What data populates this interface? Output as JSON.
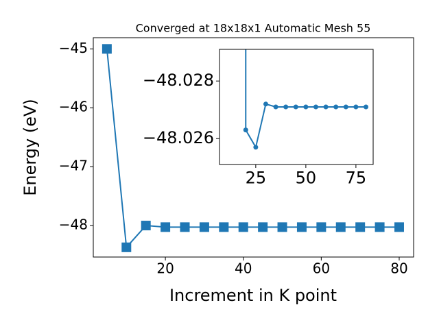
{
  "chart_data": [
    {
      "type": "line",
      "title": "Converged at 18x18x1 Automatic Mesh 55",
      "xlabel": "Increment in K point",
      "ylabel": "Energy (eV)",
      "x": [
        5,
        10,
        15,
        20,
        25,
        30,
        35,
        40,
        45,
        50,
        55,
        60,
        65,
        70,
        75,
        80
      ],
      "series": [
        {
          "color": "#1f77b4",
          "marker": "square",
          "values": [
            -45.0,
            -48.37,
            -48.0,
            -48.027,
            -48.027,
            -48.027,
            -48.027,
            -48.027,
            -48.027,
            -48.027,
            -48.027,
            -48.027,
            -48.027,
            -48.027,
            -48.027,
            -48.027
          ]
        }
      ],
      "xlim": [
        1.5,
        83.7
      ],
      "ylim": [
        -48.535,
        -44.81
      ],
      "xticks": [
        20,
        40,
        60,
        80
      ],
      "yticks": [
        {
          "value": -48,
          "label": "−48"
        },
        {
          "value": -47,
          "label": "−47"
        },
        {
          "value": -46,
          "label": "−46"
        },
        {
          "value": -45,
          "label": "−45"
        }
      ]
    },
    {
      "type": "line",
      "x": [
        20,
        25,
        30,
        35,
        40,
        45,
        50,
        55,
        60,
        65,
        70,
        75,
        80
      ],
      "series": [
        {
          "color": "#1f77b4",
          "marker": "circle",
          "values": [
            -48.0263,
            -48.0257,
            -48.0272,
            -48.0271,
            -48.0271,
            -48.0271,
            -48.0271,
            -48.0271,
            -48.0271,
            -48.0271,
            -48.0271,
            -48.0271,
            -48.0271
          ]
        }
      ],
      "xlim": [
        6.9,
        83.6
      ],
      "ylim": [
        -48.0251,
        -48.0291
      ],
      "xticks": [
        25,
        50,
        75
      ],
      "yticks": [
        {
          "value": -48.028,
          "label": "−48.028"
        },
        {
          "value": -48.026,
          "label": "−48.026"
        }
      ]
    }
  ]
}
